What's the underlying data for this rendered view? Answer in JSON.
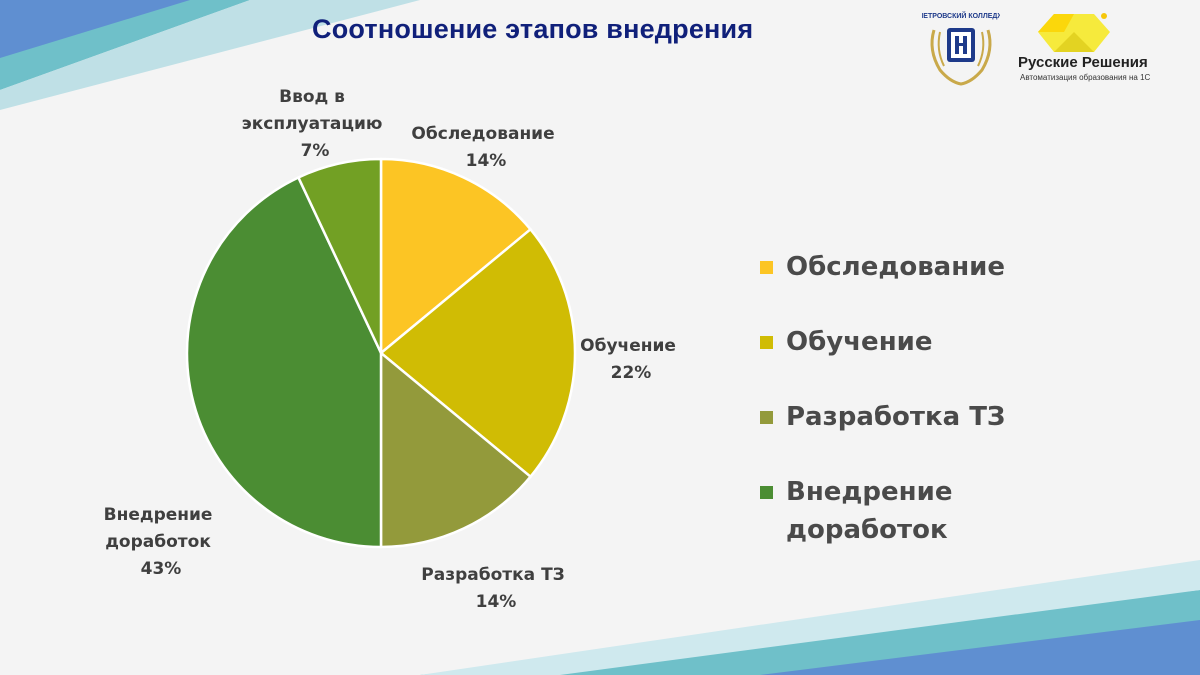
{
  "slide": {
    "title": "Соотношение этапов внедрения",
    "colors": {
      "title": "#10207a",
      "label": "#3f3f3f",
      "legend_text": "#4a4a4a"
    }
  },
  "logos": {
    "college": {
      "icon": "college-crest-logo",
      "text": "ПЕТРОВСКИЙ КОЛЛЕДЖ"
    },
    "russkie_resheniya": {
      "icon": "yellow-hexagon-logo",
      "name": "Русские Решения",
      "tagline": "Автоматизация образования на 1С"
    }
  },
  "chart_data": {
    "type": "pie",
    "title": "Соотношение этапов внедрения",
    "legend_position": "right",
    "slices": [
      {
        "label": "Обследование",
        "value": 14,
        "display": "14%",
        "color": "#fcc524"
      },
      {
        "label": "Обучение",
        "value": 22,
        "display": "22%",
        "color": "#d0bc04"
      },
      {
        "label": "Разработка ТЗ",
        "value": 14,
        "display": "14%",
        "color": "#939a3b"
      },
      {
        "label": "Внедрение доработок",
        "value": 43,
        "display": "43%",
        "color": "#4b8d33"
      },
      {
        "label": "Ввод в эксплуатацию",
        "value": 7,
        "display": "7%",
        "color": "#72a024"
      }
    ],
    "legend": [
      "Обследование",
      "Обучение",
      "Разработка ТЗ",
      "Внедрение доработок"
    ]
  }
}
